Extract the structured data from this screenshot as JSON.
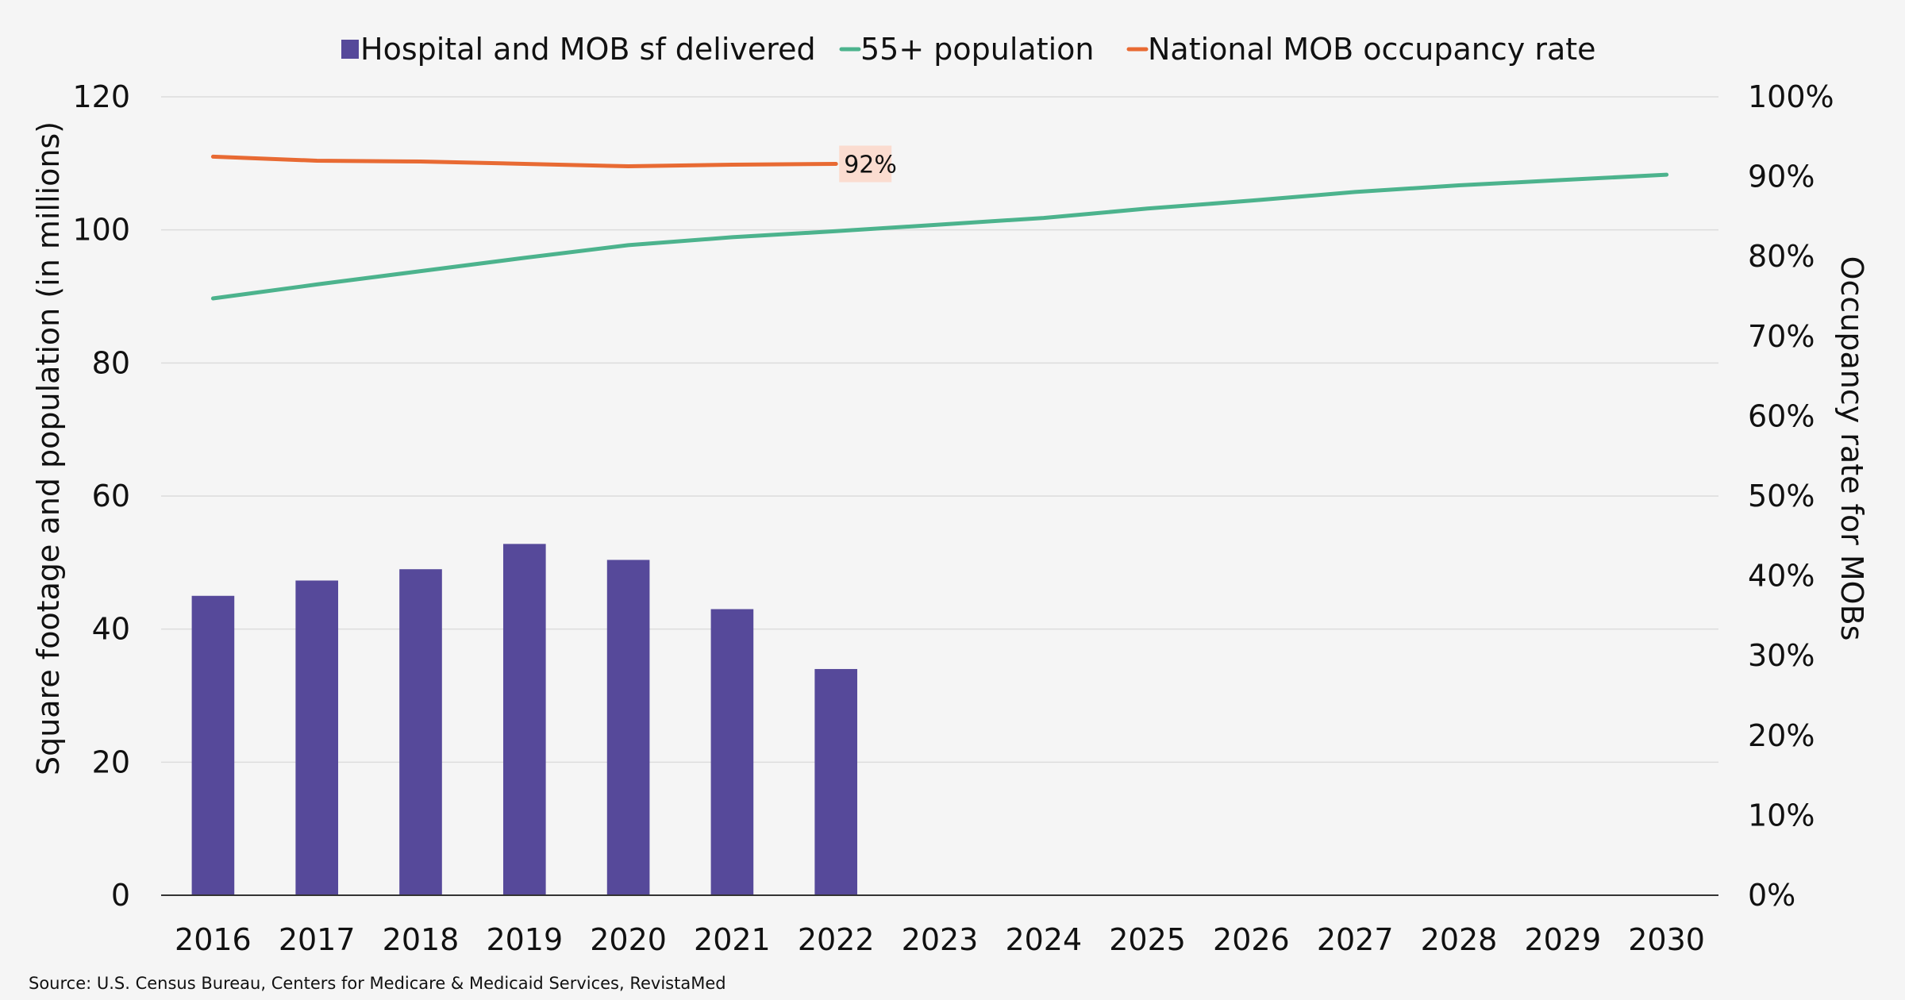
{
  "chart_data": {
    "type": "bar+line",
    "categories": [
      "2016",
      "2017",
      "2018",
      "2019",
      "2020",
      "2021",
      "2022",
      "2023",
      "2024",
      "2025",
      "2026",
      "2027",
      "2028",
      "2029",
      "2030"
    ],
    "series": [
      {
        "name": "Hospital and MOB sf delivered",
        "type": "bar",
        "axis": "left",
        "color": "#56499a",
        "values": [
          45,
          47.3,
          49,
          52.8,
          50.4,
          43,
          34,
          null,
          null,
          null,
          null,
          null,
          null,
          null,
          null
        ]
      },
      {
        "name": "55+ population",
        "type": "line",
        "axis": "left",
        "color": "#4cb38d",
        "values": [
          89.7,
          91.8,
          93.8,
          95.8,
          97.7,
          98.9,
          99.8,
          100.8,
          101.8,
          103.2,
          104.4,
          105.7,
          106.7,
          107.5,
          108.3
        ]
      },
      {
        "name": "National MOB occupancy rate",
        "type": "line",
        "axis": "right",
        "color": "#e86a33",
        "values": [
          0.925,
          0.92,
          0.919,
          0.916,
          0.913,
          0.915,
          0.916,
          null,
          null,
          null,
          null,
          null,
          null,
          null,
          null
        ]
      }
    ],
    "data_label": {
      "text": "92%",
      "series": 2,
      "category": "2022",
      "background": "#fbdcd0"
    },
    "y_left": {
      "label": "Square footage and population (in millions)",
      "min": 0,
      "max": 120,
      "ticks": [
        0,
        20,
        40,
        60,
        80,
        100,
        120
      ]
    },
    "y_right": {
      "label": "Occupancy rate for MOBs",
      "min": 0,
      "max": 1,
      "ticks": [
        "0%",
        "10%",
        "20%",
        "30%",
        "40%",
        "50%",
        "60%",
        "70%",
        "80%",
        "90%",
        "100%"
      ]
    },
    "legend_position": "top",
    "grid": true
  },
  "source": "Source: U.S. Census Bureau, Centers for Medicare & Medicaid Services, RevistaMed"
}
